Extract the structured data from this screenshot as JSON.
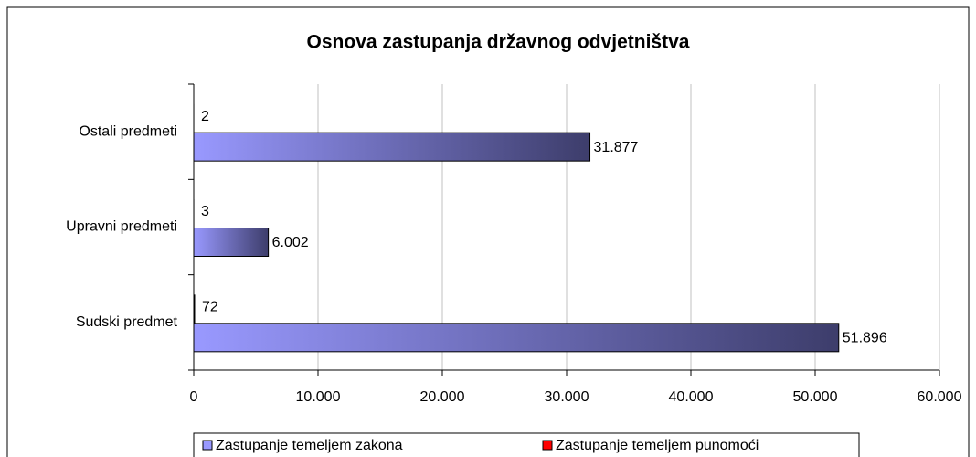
{
  "chart_data": {
    "type": "bar",
    "orientation": "horizontal",
    "title": "Osnova zastupanja državnog odvjetništva",
    "categories": [
      "Ostali predmeti",
      "Upravni predmeti",
      "Sudski predmet"
    ],
    "series": [
      {
        "name": "Zastupanje temeljem zakona",
        "color": "#9999ff",
        "values": [
          31877,
          6002,
          51896
        ],
        "value_labels": [
          "31.877",
          "6.002",
          "51.896"
        ]
      },
      {
        "name": "Zastupanje temeljem punomoći",
        "color": "#ff0000",
        "values": [
          2,
          3,
          72
        ]
      }
    ],
    "xlim": [
      0,
      60000
    ],
    "xticks": [
      0,
      {
        "value": 10000,
        "label": "10.000"
      },
      {
        "value": 20000,
        "label": "20.000"
      },
      {
        "value": 30000,
        "label": "30.000"
      },
      {
        "value": 40000,
        "label": "40.000"
      },
      {
        "value": 50000,
        "label": "50.000"
      },
      {
        "value": 60000,
        "label": "60.000"
      }
    ],
    "grid": true,
    "legend": "bottom"
  }
}
